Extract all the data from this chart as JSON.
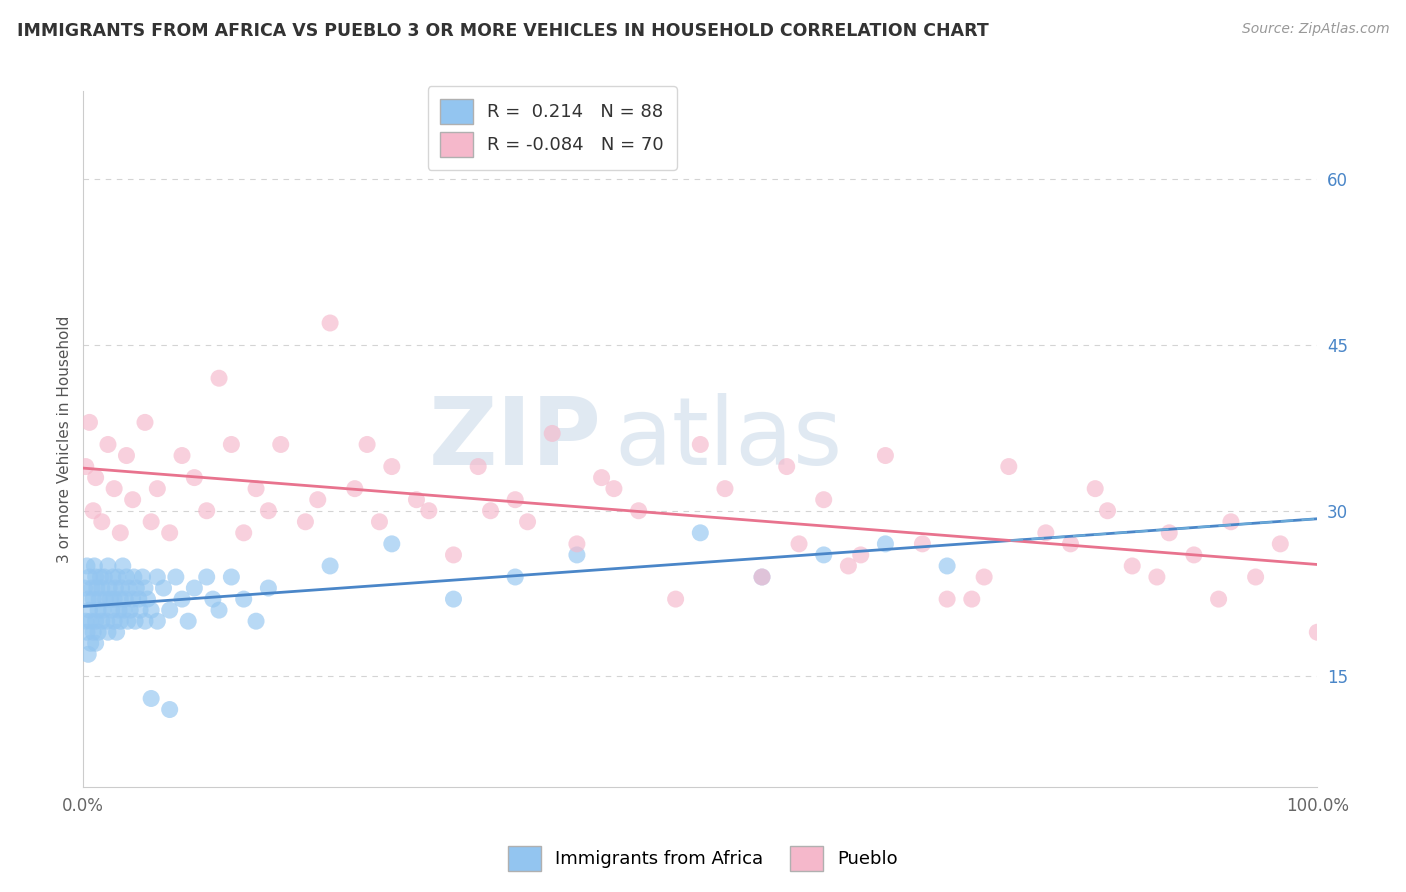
{
  "title": "IMMIGRANTS FROM AFRICA VS PUEBLO 3 OR MORE VEHICLES IN HOUSEHOLD CORRELATION CHART",
  "source_text": "Source: ZipAtlas.com",
  "ylabel": "3 or more Vehicles in Household",
  "xlim": [
    0,
    100
  ],
  "ylim": [
    5,
    68
  ],
  "y_ticks": [
    15,
    30,
    45,
    60
  ],
  "y_tick_labels": [
    "15.0%",
    "30.0%",
    "45.0%",
    "60.0%"
  ],
  "grid_color": "#d0d0d0",
  "background_color": "#ffffff",
  "blue_color": "#93c5f0",
  "pink_color": "#f5b8cb",
  "blue_line_color": "#4a86c8",
  "pink_line_color": "#e8738e",
  "dashed_line_color": "#6aaad8",
  "R_blue": 0.214,
  "N_blue": 88,
  "R_pink": -0.084,
  "N_pink": 70,
  "legend_entries": [
    "Immigrants from Africa",
    "Pueblo"
  ],
  "watermark_zip": "ZIP",
  "watermark_atlas": "atlas",
  "blue_scatter_x": [
    0.1,
    0.2,
    0.3,
    0.3,
    0.4,
    0.4,
    0.5,
    0.5,
    0.6,
    0.6,
    0.7,
    0.8,
    0.8,
    0.9,
    1.0,
    1.0,
    1.0,
    1.1,
    1.2,
    1.2,
    1.3,
    1.4,
    1.5,
    1.5,
    1.6,
    1.7,
    1.8,
    1.9,
    2.0,
    2.0,
    2.1,
    2.2,
    2.3,
    2.4,
    2.5,
    2.5,
    2.6,
    2.7,
    2.8,
    2.9,
    3.0,
    3.0,
    3.1,
    3.2,
    3.3,
    3.4,
    3.5,
    3.6,
    3.7,
    3.8,
    4.0,
    4.1,
    4.2,
    4.3,
    4.5,
    4.6,
    4.8,
    5.0,
    5.0,
    5.2,
    5.5,
    5.5,
    6.0,
    6.0,
    6.5,
    7.0,
    7.0,
    7.5,
    8.0,
    8.5,
    9.0,
    10.0,
    10.5,
    11.0,
    12.0,
    13.0,
    14.0,
    15.0,
    20.0,
    25.0,
    30.0,
    35.0,
    40.0,
    50.0,
    55.0,
    60.0,
    65.0,
    70.0
  ],
  "blue_scatter_y": [
    23,
    20,
    25,
    19,
    22,
    17,
    24,
    21,
    20,
    18,
    23,
    22,
    19,
    25,
    24,
    20,
    18,
    23,
    21,
    19,
    22,
    24,
    20,
    23,
    21,
    24,
    22,
    20,
    25,
    19,
    23,
    22,
    21,
    24,
    20,
    22,
    23,
    19,
    24,
    21,
    22,
    20,
    23,
    25,
    21,
    22,
    24,
    20,
    23,
    21,
    22,
    24,
    20,
    23,
    22,
    21,
    24,
    20,
    23,
    22,
    21,
    13,
    24,
    20,
    23,
    21,
    12,
    24,
    22,
    20,
    23,
    24,
    22,
    21,
    24,
    22,
    20,
    23,
    25,
    27,
    22,
    24,
    26,
    28,
    24,
    26,
    27,
    25
  ],
  "pink_scatter_x": [
    0.2,
    0.5,
    0.8,
    1.0,
    1.5,
    2.0,
    2.5,
    3.0,
    3.5,
    4.0,
    5.0,
    5.5,
    6.0,
    7.0,
    8.0,
    9.0,
    10.0,
    11.0,
    12.0,
    13.0,
    14.0,
    15.0,
    16.0,
    18.0,
    19.0,
    20.0,
    22.0,
    23.0,
    24.0,
    25.0,
    27.0,
    28.0,
    30.0,
    32.0,
    33.0,
    35.0,
    36.0,
    38.0,
    40.0,
    42.0,
    43.0,
    45.0,
    48.0,
    50.0,
    52.0,
    55.0,
    57.0,
    58.0,
    60.0,
    62.0,
    63.0,
    65.0,
    68.0,
    70.0,
    72.0,
    73.0,
    75.0,
    78.0,
    80.0,
    82.0,
    83.0,
    85.0,
    87.0,
    88.0,
    90.0,
    92.0,
    93.0,
    95.0,
    97.0,
    100.0
  ],
  "pink_scatter_y": [
    34,
    38,
    30,
    33,
    29,
    36,
    32,
    28,
    35,
    31,
    38,
    29,
    32,
    28,
    35,
    33,
    30,
    42,
    36,
    28,
    32,
    30,
    36,
    29,
    31,
    47,
    32,
    36,
    29,
    34,
    31,
    30,
    26,
    34,
    30,
    31,
    29,
    37,
    27,
    33,
    32,
    30,
    22,
    36,
    32,
    24,
    34,
    27,
    31,
    25,
    26,
    35,
    27,
    22,
    22,
    24,
    34,
    28,
    27,
    32,
    30,
    25,
    24,
    28,
    26,
    22,
    29,
    24,
    27,
    19
  ]
}
